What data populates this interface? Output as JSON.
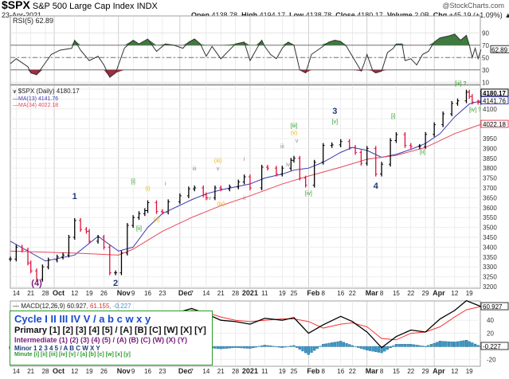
{
  "header": {
    "symbol": "$SPX",
    "name": "S&P 500 Large Cap Index",
    "exchange": "INDX",
    "date": "23-Apr-2021",
    "brand": "@StockCharts.com",
    "open_label": "Open",
    "open": "4138.78",
    "high_label": "High",
    "high": "4194.17",
    "low_label": "Low",
    "low": "4138.78",
    "close_label": "Close",
    "close": "4180.17",
    "volume_label": "Volume",
    "volume": "2.0B",
    "chg_label": "Chg",
    "chg": "+45.19 (+1.09%)"
  },
  "colors": {
    "up": "#000000",
    "down": "#e0103a",
    "ma13": "#3a3ab0",
    "ma34": "#e8485a",
    "rsi_over": "#3f7a3f",
    "rsi_under": "#9a3040",
    "macd": "#000000",
    "signal": "#ff3030",
    "hist": "#3a98c8",
    "minor": "#1f3a7a",
    "minute": "#2a9a2a",
    "intermediate": "#7a1a7a",
    "minuette": "#f0b000",
    "subminuette": "#888888",
    "legend_border": "#2a9a2a"
  },
  "legend": {
    "cycle": "Cycle I II III IV V / a b c w x y",
    "primary": "Primary [1] [2] [3] [4] [5] / [A] [B] [C] [W] [X] [Y]",
    "intermediate": "Intermediate (1) (2) (3) (4) (5) / (A) (B) (C) (W) (X) (Y)",
    "minor": "Minor 1 2 3 4 5 / A B C W X Y",
    "minute": "Minute [i] [ii] [iii] [iv] [v] / [a] [b] [c] [w] [x] [y]"
  },
  "chart_data": [
    {
      "type": "line",
      "panel": "rsi",
      "title": "RSI(5) 62.89",
      "ylim": [
        0,
        100
      ],
      "ticks": [
        10,
        30,
        50,
        70,
        90
      ],
      "levels": [
        30,
        50,
        70
      ],
      "last_label": "62.89",
      "x": [
        "2020-09-10",
        "2020-09-14",
        "2020-09-18",
        "2020-09-21",
        "2020-09-23",
        "2020-09-25",
        "2020-09-30",
        "2020-10-05",
        "2020-10-09",
        "2020-10-12",
        "2020-10-14",
        "2020-10-19",
        "2020-10-22",
        "2020-10-26",
        "2020-10-28",
        "2020-10-30",
        "2020-11-04",
        "2020-11-09",
        "2020-11-11",
        "2020-11-16",
        "2020-11-19",
        "2020-11-24",
        "2020-11-27",
        "2020-12-02",
        "2020-12-04",
        "2020-12-08",
        "2020-12-10",
        "2020-12-14",
        "2020-12-16",
        "2020-12-21",
        "2020-12-28",
        "2020-12-31",
        "2021-01-04",
        "2021-01-06",
        "2021-01-08",
        "2021-01-11",
        "2021-01-13",
        "2021-01-15",
        "2021-01-19",
        "2021-01-21",
        "2021-01-25",
        "2021-01-27",
        "2021-01-29",
        "2021-02-02",
        "2021-02-05",
        "2021-02-10",
        "2021-02-12",
        "2021-02-16",
        "2021-02-18",
        "2021-02-22",
        "2021-02-25",
        "2021-02-26",
        "2021-03-01",
        "2021-03-03",
        "2021-03-04",
        "2021-03-08",
        "2021-03-10",
        "2021-03-12",
        "2021-03-15",
        "2021-03-17",
        "2021-03-18",
        "2021-03-22",
        "2021-03-24",
        "2021-03-26",
        "2021-03-30",
        "2021-04-01",
        "2021-04-05",
        "2021-04-08",
        "2021-04-12",
        "2021-04-14",
        "2021-04-16",
        "2021-04-19",
        "2021-04-20",
        "2021-04-21",
        "2021-04-22",
        "2021-04-23"
      ],
      "values": [
        40,
        48,
        35,
        25,
        22,
        35,
        55,
        62,
        65,
        78,
        62,
        45,
        52,
        38,
        18,
        25,
        65,
        78,
        72,
        80,
        60,
        72,
        70,
        65,
        75,
        80,
        72,
        52,
        68,
        48,
        72,
        75,
        45,
        62,
        78,
        68,
        55,
        48,
        65,
        75,
        70,
        30,
        25,
        55,
        65,
        75,
        78,
        76,
        68,
        52,
        28,
        40,
        55,
        28,
        25,
        28,
        58,
        65,
        72,
        72,
        45,
        48,
        38,
        55,
        60,
        75,
        82,
        85,
        88,
        78,
        86,
        70,
        50,
        65,
        48,
        62.89
      ]
    },
    {
      "type": "bar",
      "panel": "price",
      "title": "$SPX (Daily) 4180.17",
      "ylim": [
        3200,
        4200
      ],
      "ytick_step": 50,
      "x": [
        "2020-09-10",
        "2020-09-14",
        "2020-09-16",
        "2020-09-18",
        "2020-09-21",
        "2020-09-23",
        "2020-09-25",
        "2020-09-29",
        "2020-10-02",
        "2020-10-06",
        "2020-10-08",
        "2020-10-12",
        "2020-10-14",
        "2020-10-16",
        "2020-10-19",
        "2020-10-22",
        "2020-10-26",
        "2020-10-28",
        "2020-10-30",
        "2020-11-03",
        "2020-11-05",
        "2020-11-09",
        "2020-11-11",
        "2020-11-13",
        "2020-11-16",
        "2020-11-19",
        "2020-11-23",
        "2020-11-25",
        "2020-12-01",
        "2020-12-04",
        "2020-12-08",
        "2020-12-11",
        "2020-12-14",
        "2020-12-17",
        "2020-12-21",
        "2020-12-24",
        "2020-12-29",
        "2020-12-31",
        "2021-01-04",
        "2021-01-08",
        "2021-01-12",
        "2021-01-15",
        "2021-01-19",
        "2021-01-22",
        "2021-01-25",
        "2021-01-27",
        "2021-01-29",
        "2021-02-03",
        "2021-02-08",
        "2021-02-11",
        "2021-02-16",
        "2021-02-19",
        "2021-02-23",
        "2021-02-25",
        "2021-03-01",
        "2021-03-04",
        "2021-03-08",
        "2021-03-11",
        "2021-03-15",
        "2021-03-18",
        "2021-03-22",
        "2021-03-25",
        "2021-03-29",
        "2021-04-01",
        "2021-04-06",
        "2021-04-09",
        "2021-04-13",
        "2021-04-16",
        "2021-04-19",
        "2021-04-20",
        "2021-04-22",
        "2021-04-23"
      ],
      "close": [
        3340,
        3400,
        3385,
        3320,
        3280,
        3237,
        3300,
        3335,
        3350,
        3360,
        3450,
        3535,
        3490,
        3480,
        3430,
        3450,
        3400,
        3270,
        3270,
        3370,
        3510,
        3550,
        3570,
        3585,
        3625,
        3580,
        3578,
        3630,
        3660,
        3695,
        3700,
        3665,
        3650,
        3700,
        3695,
        3705,
        3730,
        3756,
        3700,
        3805,
        3800,
        3770,
        3800,
        3840,
        3850,
        3750,
        3714,
        3830,
        3915,
        3918,
        3935,
        3905,
        3880,
        3825,
        3900,
        3770,
        3820,
        3940,
        3970,
        3915,
        3910,
        3910,
        3971,
        4020,
        4075,
        4128,
        4141,
        4185,
        4163,
        4135,
        4134,
        4180.17
      ],
      "series": [
        {
          "name": "MA(13) 4141.76",
          "x": [
            "2020-09-10",
            "2020-09-28",
            "2020-10-12",
            "2020-10-22",
            "2020-11-02",
            "2020-11-09",
            "2020-11-16",
            "2020-11-23",
            "2020-12-07",
            "2020-12-14",
            "2020-12-21",
            "2020-12-28",
            "2021-01-04",
            "2021-01-11",
            "2021-01-19",
            "2021-01-25",
            "2021-02-01",
            "2021-02-08",
            "2021-02-16",
            "2021-02-22",
            "2021-03-01",
            "2021-03-08",
            "2021-03-15",
            "2021-03-22",
            "2021-03-29",
            "2021-04-05",
            "2021-04-12",
            "2021-04-19",
            "2021-04-23"
          ],
          "values": [
            3430,
            3330,
            3360,
            3455,
            3380,
            3400,
            3500,
            3570,
            3640,
            3670,
            3690,
            3705,
            3720,
            3750,
            3770,
            3790,
            3800,
            3830,
            3880,
            3905,
            3890,
            3855,
            3870,
            3895,
            3925,
            3975,
            4060,
            4125,
            4141.76
          ],
          "last_label": "4141.76"
        },
        {
          "name": "MA(34) 4022.18",
          "x": [
            "2020-09-10",
            "2020-10-12",
            "2020-11-02",
            "2020-11-09",
            "2020-11-23",
            "2020-12-07",
            "2020-12-21",
            "2021-01-04",
            "2021-01-19",
            "2021-02-01",
            "2021-02-16",
            "2021-03-01",
            "2021-03-15",
            "2021-03-29",
            "2021-04-12",
            "2021-04-23"
          ],
          "values": [
            3380,
            3370,
            3360,
            3390,
            3480,
            3550,
            3610,
            3660,
            3720,
            3760,
            3805,
            3845,
            3865,
            3905,
            3975,
            4022.18
          ],
          "last_label": "4022.18"
        }
      ],
      "last_label": "4180.17",
      "annotations": [
        {
          "text": "(4)",
          "date": "2020-09-23",
          "price": 3175,
          "level": "intermediate"
        },
        {
          "text": "1",
          "date": "2020-10-12",
          "price": 3644,
          "level": "minor"
        },
        {
          "text": "2",
          "date": "2020-10-30",
          "price": 3190,
          "level": "minor"
        },
        {
          "text": "[i]",
          "date": "2020-11-09",
          "price": 3724,
          "level": "minute"
        },
        {
          "text": "[ii]",
          "date": "2020-11-11",
          "price": 3486,
          "level": "minute"
        },
        {
          "text": "(i)",
          "date": "2020-11-16",
          "price": 3688,
          "level": "minuette"
        },
        {
          "text": "(ii)",
          "date": "2020-11-19",
          "price": 3530,
          "level": "minuette"
        },
        {
          "text": "i",
          "date": "2020-11-24",
          "price": 3712,
          "level": "subminuette"
        },
        {
          "text": "ii",
          "date": "2020-11-25",
          "price": 3575,
          "level": "subminuette"
        },
        {
          "text": "iii",
          "date": "2020-12-08",
          "price": 3789,
          "level": "subminuette"
        },
        {
          "text": "iv",
          "date": "2020-12-15",
          "price": 3640,
          "level": "subminuette"
        },
        {
          "text": "(iii)",
          "date": "2020-12-18",
          "price": 3829,
          "level": "minuette"
        },
        {
          "text": "v",
          "date": "2020-12-18",
          "price": 3789,
          "level": "subminuette"
        },
        {
          "text": "(iv)",
          "date": "2020-12-21",
          "price": 3611,
          "level": "minuette"
        },
        {
          "text": "i",
          "date": "2020-12-31",
          "price": 3837,
          "level": "subminuette"
        },
        {
          "text": "ii",
          "date": "2020-12-31",
          "price": 3640,
          "level": "subminuette"
        },
        {
          "text": "iii",
          "date": "2021-01-19",
          "price": 3902,
          "level": "subminuette"
        },
        {
          "text": "iv",
          "date": "2021-01-21",
          "price": 3809,
          "level": "subminuette"
        },
        {
          "text": "[iii]",
          "date": "2021-01-25",
          "price": 4006,
          "level": "minute"
        },
        {
          "text": "(v)",
          "date": "2021-01-25",
          "price": 3970,
          "level": "minuette"
        },
        {
          "text": "v",
          "date": "2021-01-26",
          "price": 3930,
          "level": "subminuette"
        },
        {
          "text": "[iv]",
          "date": "2021-02-01",
          "price": 3664,
          "level": "minute"
        },
        {
          "text": "3",
          "date": "2021-02-12",
          "price": 4075,
          "level": "minor"
        },
        {
          "text": "[v]",
          "date": "2021-02-12",
          "price": 4027,
          "level": "minute"
        },
        {
          "text": "4",
          "date": "2021-03-04",
          "price": 3696,
          "level": "minor"
        },
        {
          "text": "[i]",
          "date": "2021-03-12",
          "price": 4055,
          "level": "minute"
        },
        {
          "text": "[ii]",
          "date": "2021-03-26",
          "price": 3873,
          "level": "minute"
        },
        {
          "text": "[iii] ?",
          "date": "2021-04-14",
          "price": 4220,
          "level": "minute"
        },
        {
          "text": "[iv] ?",
          "date": "2021-04-21",
          "price": 4087,
          "level": "minute"
        }
      ]
    },
    {
      "type": "line",
      "panel": "macd",
      "title": "MACD(12,26,9)",
      "macd_value": "60.927",
      "signal_value": "61.155",
      "hist_value": "-0.227",
      "ylim": [
        -25,
        70
      ],
      "ticks": [
        -20,
        20,
        40
      ],
      "x": [
        "2020-09-10",
        "2020-09-21",
        "2020-10-01",
        "2020-10-12",
        "2020-10-26",
        "2020-11-02",
        "2020-11-09",
        "2020-11-23",
        "2020-12-07",
        "2020-12-14",
        "2020-12-21",
        "2020-12-28",
        "2021-01-04",
        "2021-01-11",
        "2021-01-19",
        "2021-01-25",
        "2021-02-01",
        "2021-02-08",
        "2021-02-16",
        "2021-02-22",
        "2021-03-01",
        "2021-03-08",
        "2021-03-15",
        "2021-03-22",
        "2021-03-29",
        "2021-04-05",
        "2021-04-12",
        "2021-04-16",
        "2021-04-23"
      ],
      "macd": [
        20,
        -10,
        0,
        15,
        5,
        -12,
        20,
        45,
        58,
        50,
        40,
        38,
        34,
        43,
        40,
        44,
        20,
        33,
        46,
        38,
        22,
        -2,
        15,
        25,
        22,
        42,
        55,
        70,
        60.927
      ],
      "signal": [
        25,
        5,
        0,
        5,
        10,
        0,
        5,
        30,
        55,
        52,
        45,
        40,
        38,
        40,
        42,
        42,
        38,
        28,
        34,
        36,
        30,
        12,
        10,
        20,
        22,
        30,
        45,
        56,
        61.155
      ],
      "x_ticks": [
        "14",
        "21",
        "28",
        "Oct",
        "12",
        "19",
        "26",
        "Nov",
        "9",
        "16",
        "23",
        "Dec",
        "7",
        "14",
        "21",
        "28",
        "2021",
        "11",
        "19",
        "25",
        "Feb",
        "8",
        "16",
        "22",
        "Mar",
        "8",
        "15",
        "22",
        "29",
        "Apr",
        "12",
        "19"
      ]
    }
  ]
}
